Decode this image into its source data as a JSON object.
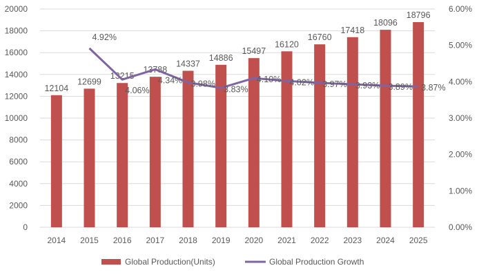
{
  "chart_data": {
    "type": "bar+line",
    "categories": [
      "2014",
      "2015",
      "2016",
      "2017",
      "2018",
      "2019",
      "2020",
      "2021",
      "2022",
      "2023",
      "2024",
      "2025"
    ],
    "series": [
      {
        "name": "Global Production(Units)",
        "type": "bar",
        "axis": "left",
        "color": "#C0504D",
        "values": [
          12104,
          12699,
          13215,
          13788,
          14337,
          14886,
          15497,
          16120,
          16760,
          17418,
          18096,
          18796
        ],
        "labels": [
          "12104",
          "12699",
          "13215",
          "13788",
          "14337",
          "14886",
          "15497",
          "16120",
          "16760",
          "17418",
          "18096",
          "18796"
        ]
      },
      {
        "name": "Global Production Growth",
        "type": "line",
        "axis": "right",
        "color": "#8064A2",
        "values": [
          null,
          4.92,
          4.06,
          4.34,
          3.98,
          3.83,
          4.1,
          4.02,
          3.97,
          3.93,
          3.89,
          3.87
        ],
        "labels": [
          "",
          "4.92%",
          "4.06%",
          "4.34%",
          "3.98%",
          "3.83%",
          "4.10%",
          "4.02%",
          "3.97%",
          "3.93%",
          "3.89%",
          "3.87%"
        ]
      }
    ],
    "ylim": [
      0,
      20000
    ],
    "y2lim": [
      0,
      6
    ],
    "yticks": [
      "0",
      "2000",
      "4000",
      "6000",
      "8000",
      "10000",
      "12000",
      "14000",
      "16000",
      "18000",
      "20000"
    ],
    "y2ticks": [
      "0.00%",
      "1.00%",
      "2.00%",
      "3.00%",
      "4.00%",
      "5.00%",
      "6.00%"
    ],
    "grid": true,
    "legend": "bottom"
  }
}
